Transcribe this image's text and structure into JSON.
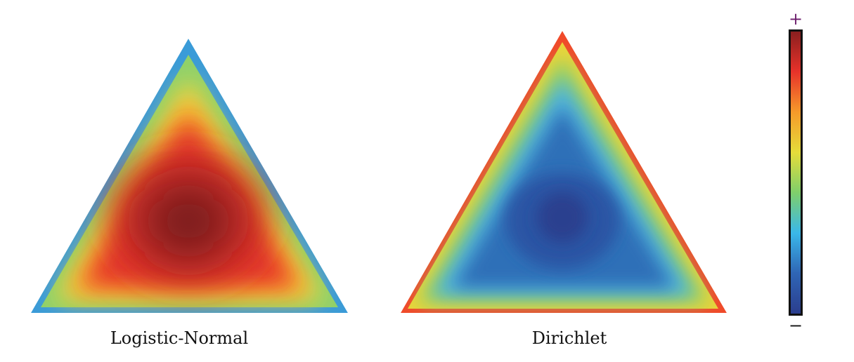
{
  "panels": [
    {
      "label": "Logistic-Normal"
    },
    {
      "label": "Dirichlet"
    }
  ],
  "colorbar": {
    "max_label": "+",
    "min_label": "−",
    "stops": [
      "#2b3e8e",
      "#2f65b5",
      "#3ab8ea",
      "#7fcf6b",
      "#e6dc3a",
      "#f59a2a",
      "#e8322a",
      "#8a1f1f"
    ]
  },
  "colors": {
    "logistic": {
      "edge": "#3a9bd8",
      "band1": "#8fd16a",
      "band2": "#f2d640",
      "band3": "#f59a2a",
      "body": "#e8392a",
      "inner": "#c62a26",
      "core": "#7e1c1c"
    },
    "dirichlet": {
      "edge": "#f04a2a",
      "band1": "#e8d43a",
      "band2": "#8fd06a",
      "band3": "#4fb3dc",
      "body": "#2f6fb8",
      "inner": "#2b55a4",
      "core": "#2a3f8f"
    }
  }
}
